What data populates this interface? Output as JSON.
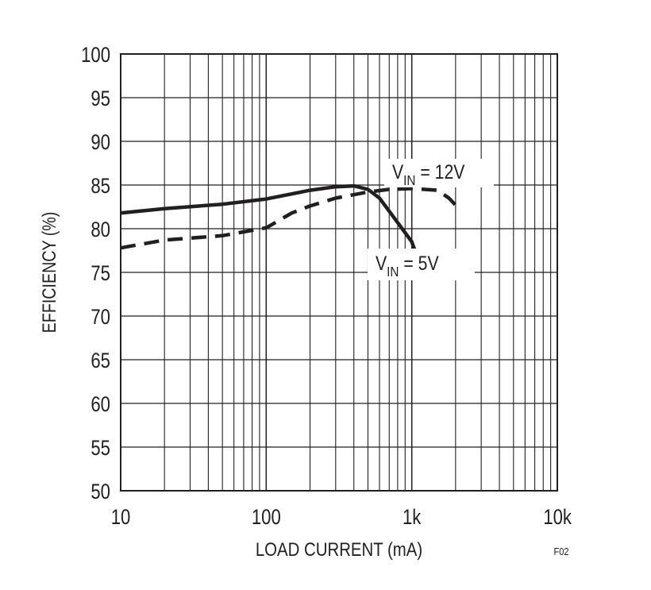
{
  "chart_data": {
    "type": "line",
    "xlabel": "LOAD CURRENT (mA)",
    "ylabel": "EFFICIENCY (%)",
    "figure_id": "F02",
    "x_scale": "log",
    "xlim": [
      10,
      10000
    ],
    "ylim": [
      50,
      100
    ],
    "grid": true,
    "x_ticks": [
      10,
      100,
      1000,
      10000
    ],
    "x_tick_labels": [
      "10",
      "100",
      "1k",
      "10k"
    ],
    "y_ticks": [
      50,
      55,
      60,
      65,
      70,
      75,
      80,
      85,
      90,
      95,
      100
    ],
    "y_tick_labels": [
      "50",
      "55",
      "60",
      "65",
      "70",
      "75",
      "80",
      "85",
      "90",
      "95",
      "100"
    ],
    "series": [
      {
        "name": "VIN = 5V",
        "label_main": "V",
        "label_sub": "IN",
        "label_tail": " = 5V",
        "style": "solid",
        "color": "#231f20",
        "x": [
          10,
          20,
          50,
          100,
          200,
          300,
          400,
          500,
          600,
          800,
          1000,
          1050
        ],
        "y": [
          81.8,
          82.3,
          82.8,
          83.4,
          84.4,
          84.8,
          84.9,
          84.5,
          83.5,
          80.7,
          78.5,
          77.5
        ]
      },
      {
        "name": "VIN = 12V",
        "label_main": "V",
        "label_sub": "IN",
        "label_tail": " = 12V",
        "style": "dashed",
        "color": "#231f20",
        "x": [
          10,
          20,
          50,
          100,
          150,
          200,
          300,
          500,
          700,
          1000,
          1500,
          1800,
          2000
        ],
        "y": [
          77.8,
          78.7,
          79.2,
          80.1,
          81.8,
          82.6,
          83.5,
          84.2,
          84.5,
          84.6,
          84.4,
          83.5,
          82.7
        ]
      }
    ]
  }
}
